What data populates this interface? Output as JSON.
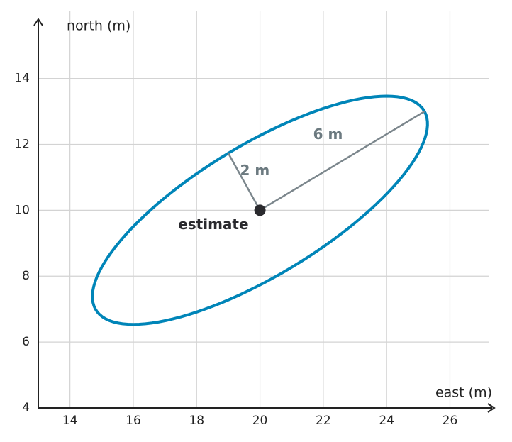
{
  "chart_data": {
    "type": "ellipse",
    "xlabel": "east (m)",
    "ylabel": "north (m)",
    "xlim": [
      13,
      27.4
    ],
    "ylim": [
      4,
      15.8
    ],
    "xticks": [
      14,
      16,
      18,
      20,
      22,
      24,
      26
    ],
    "yticks": [
      4,
      6,
      8,
      10,
      12,
      14
    ],
    "grid": true,
    "ellipse": {
      "center": [
        20,
        10
      ],
      "radii": [
        6,
        2
      ],
      "radii_labels": [
        "6 m",
        "2 m"
      ],
      "angle": 30,
      "color": "#0085b8"
    },
    "estimate": {
      "label": "estimate",
      "color": "#2a2a2e"
    }
  }
}
